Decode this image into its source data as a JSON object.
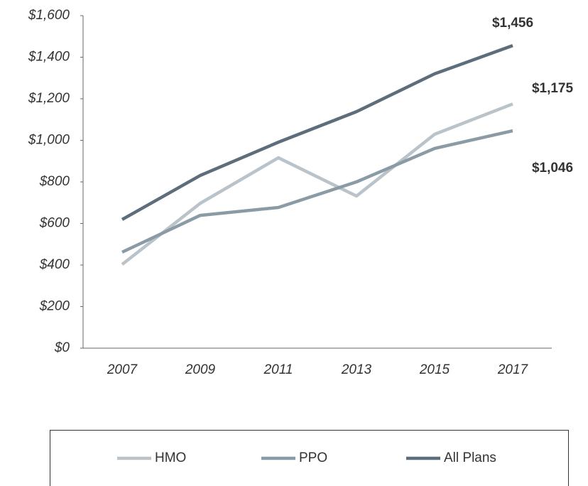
{
  "chart_data": {
    "type": "line",
    "categories": [
      "2007",
      "2009",
      "2011",
      "2013",
      "2015",
      "2017"
    ],
    "series": [
      {
        "name": "HMO",
        "color": "#b9c3c9",
        "values": [
          403,
          697,
          916,
          732,
          1029,
          1175
        ],
        "value_labels": [
          null,
          null,
          null,
          null,
          null,
          "$1,175"
        ]
      },
      {
        "name": "PPO",
        "color": "#8a9ba6",
        "values": [
          462,
          639,
          677,
          800,
          961,
          1046
        ],
        "value_labels": [
          null,
          null,
          null,
          null,
          null,
          "$1,046"
        ]
      },
      {
        "name": "All Plans",
        "color": "#5d6d7b",
        "values": [
          619,
          831,
          991,
          1138,
          1320,
          1456
        ],
        "value_labels": [
          null,
          null,
          null,
          null,
          null,
          "$1,456"
        ]
      }
    ],
    "ylim": [
      0,
      1600
    ],
    "yticks": [
      {
        "value": 0,
        "label": "$0"
      },
      {
        "value": 200,
        "label": "$200"
      },
      {
        "value": 400,
        "label": "$400"
      },
      {
        "value": 600,
        "label": "$600"
      },
      {
        "value": 800,
        "label": "$800"
      },
      {
        "value": 1000,
        "label": "$1,000"
      },
      {
        "value": 1200,
        "label": "$1,200"
      },
      {
        "value": 1400,
        "label": "$1,400"
      },
      {
        "value": 1600,
        "label": "$1,600"
      }
    ],
    "grid": false,
    "legend": "bottom"
  }
}
